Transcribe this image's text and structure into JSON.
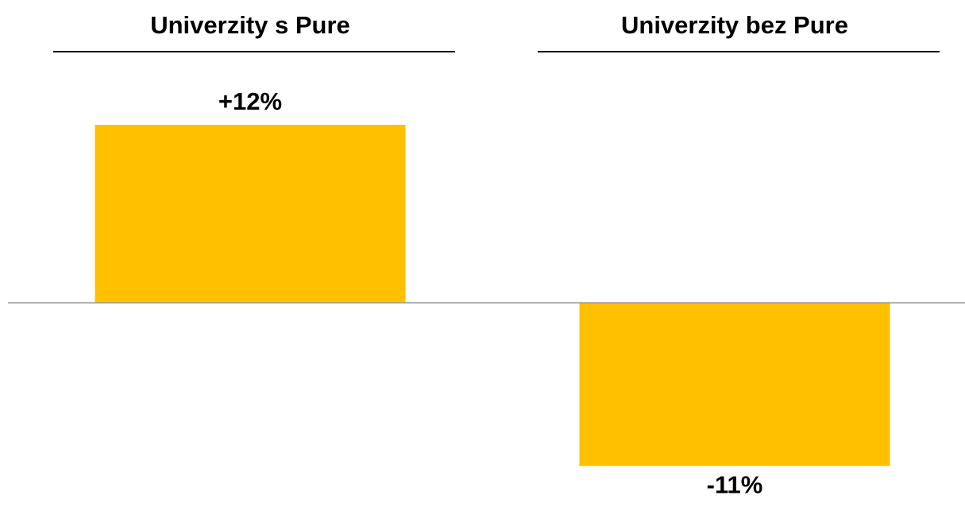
{
  "chart_data": {
    "type": "bar",
    "categories": [
      "Univerzity s Pure",
      "Univerzity bez Pure"
    ],
    "values": [
      12,
      -11
    ],
    "value_labels": [
      "+12%",
      "-11%"
    ],
    "color": "#FFC000",
    "ylim": [
      -12,
      12
    ]
  }
}
